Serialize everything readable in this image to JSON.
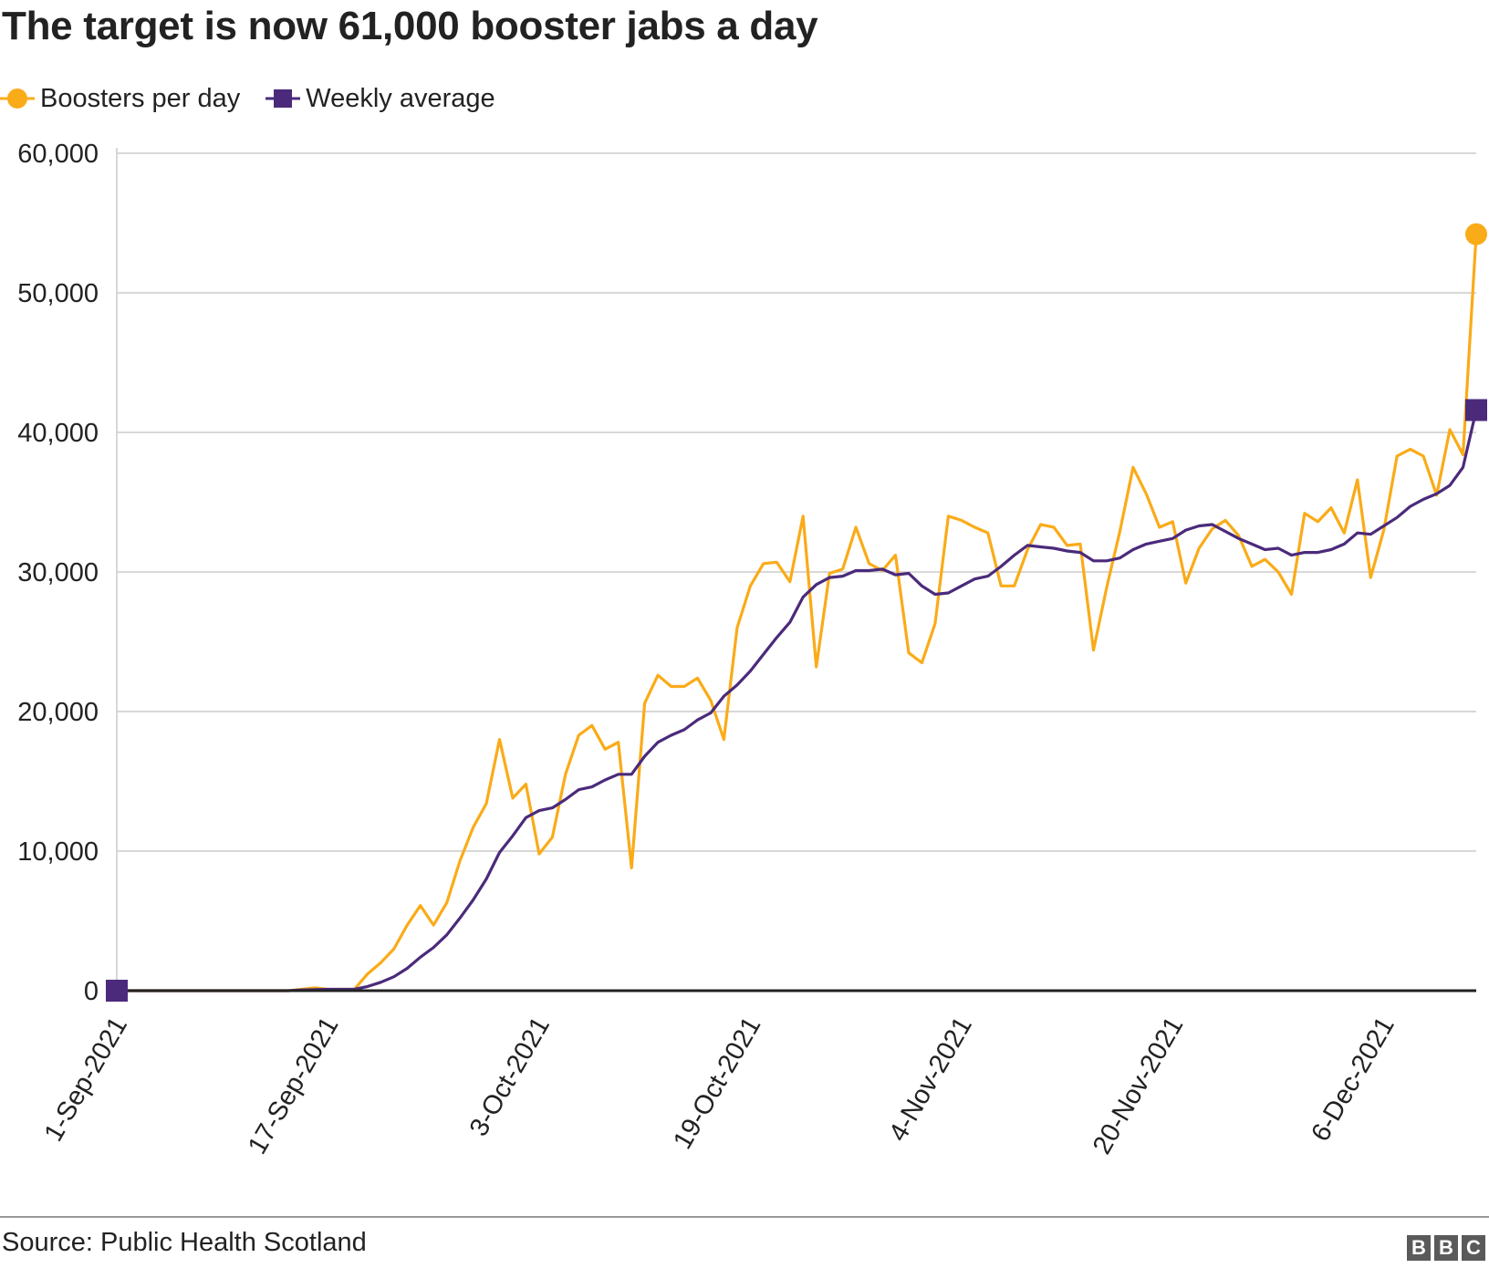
{
  "header": {
    "title": "The target is now 61,000 booster jabs a day"
  },
  "footer": {
    "source": "Source: Public Health Scotland",
    "logo_letters": [
      "B",
      "B",
      "C"
    ]
  },
  "colors": {
    "boosters": "#FAAB18",
    "weekly": "#4B2A7B",
    "grid": "#CCCCCC",
    "axis": "#222222",
    "text": "#222222"
  },
  "chart_data": {
    "type": "line",
    "title": "The target is now 61,000 booster jabs a day",
    "xlabel": "",
    "ylabel": "",
    "ylim": [
      0,
      60000
    ],
    "yticks": [
      0,
      10000,
      20000,
      30000,
      40000,
      50000,
      60000
    ],
    "ytick_labels": [
      "0",
      "10,000",
      "20,000",
      "30,000",
      "40,000",
      "50,000",
      "60,000"
    ],
    "x_start": "2021-09-01",
    "x_end": "2021-12-13",
    "xtick_dates": [
      "2021-09-01",
      "2021-09-17",
      "2021-10-03",
      "2021-10-19",
      "2021-11-04",
      "2021-11-20",
      "2021-12-06"
    ],
    "xtick_labels": [
      "1-Sep-2021",
      "17-Sep-2021",
      "3-Oct-2021",
      "19-Oct-2021",
      "4-Nov-2021",
      "20-Nov-2021",
      "6-Dec-2021"
    ],
    "grid": true,
    "legend_position": "top-left",
    "series": [
      {
        "name": "Boosters per day",
        "color": "#FAAB18",
        "marker": "circle",
        "points": [
          [
            "2021-09-01",
            0
          ],
          [
            "2021-09-02",
            0
          ],
          [
            "2021-09-03",
            0
          ],
          [
            "2021-09-04",
            0
          ],
          [
            "2021-09-05",
            0
          ],
          [
            "2021-09-06",
            0
          ],
          [
            "2021-09-07",
            0
          ],
          [
            "2021-09-08",
            0
          ],
          [
            "2021-09-09",
            0
          ],
          [
            "2021-09-10",
            0
          ],
          [
            "2021-09-11",
            0
          ],
          [
            "2021-09-12",
            0
          ],
          [
            "2021-09-13",
            0
          ],
          [
            "2021-09-14",
            0
          ],
          [
            "2021-09-15",
            100
          ],
          [
            "2021-09-16",
            200
          ],
          [
            "2021-09-17",
            100
          ],
          [
            "2021-09-18",
            100
          ],
          [
            "2021-09-19",
            100
          ],
          [
            "2021-09-20",
            1200
          ],
          [
            "2021-09-21",
            2000
          ],
          [
            "2021-09-22",
            3000
          ],
          [
            "2021-09-23",
            4700
          ],
          [
            "2021-09-24",
            6100
          ],
          [
            "2021-09-25",
            4700
          ],
          [
            "2021-09-26",
            6300
          ],
          [
            "2021-09-27",
            9300
          ],
          [
            "2021-09-28",
            11700
          ],
          [
            "2021-09-29",
            13400
          ],
          [
            "2021-09-30",
            18000
          ],
          [
            "2021-10-01",
            13800
          ],
          [
            "2021-10-02",
            14800
          ],
          [
            "2021-10-03",
            9800
          ],
          [
            "2021-10-04",
            11000
          ],
          [
            "2021-10-05",
            15500
          ],
          [
            "2021-10-06",
            18300
          ],
          [
            "2021-10-07",
            19000
          ],
          [
            "2021-10-08",
            17300
          ],
          [
            "2021-10-09",
            17800
          ],
          [
            "2021-10-10",
            8800
          ],
          [
            "2021-10-11",
            20600
          ],
          [
            "2021-10-12",
            22600
          ],
          [
            "2021-10-13",
            21800
          ],
          [
            "2021-10-14",
            21800
          ],
          [
            "2021-10-15",
            22400
          ],
          [
            "2021-10-16",
            20800
          ],
          [
            "2021-10-17",
            18000
          ],
          [
            "2021-10-18",
            26000
          ],
          [
            "2021-10-19",
            29000
          ],
          [
            "2021-10-20",
            30600
          ],
          [
            "2021-10-21",
            30700
          ],
          [
            "2021-10-22",
            29300
          ],
          [
            "2021-10-23",
            34000
          ],
          [
            "2021-10-24",
            23200
          ],
          [
            "2021-10-25",
            29900
          ],
          [
            "2021-10-26",
            30200
          ],
          [
            "2021-10-27",
            33200
          ],
          [
            "2021-10-28",
            30600
          ],
          [
            "2021-10-29",
            30100
          ],
          [
            "2021-10-30",
            31200
          ],
          [
            "2021-10-31",
            24200
          ],
          [
            "2021-11-01",
            23500
          ],
          [
            "2021-11-02",
            26300
          ],
          [
            "2021-11-03",
            34000
          ],
          [
            "2021-11-04",
            33700
          ],
          [
            "2021-11-05",
            33200
          ],
          [
            "2021-11-06",
            32800
          ],
          [
            "2021-11-07",
            29000
          ],
          [
            "2021-11-08",
            29000
          ],
          [
            "2021-11-09",
            31600
          ],
          [
            "2021-11-10",
            33400
          ],
          [
            "2021-11-11",
            33200
          ],
          [
            "2021-11-12",
            31900
          ],
          [
            "2021-11-13",
            32000
          ],
          [
            "2021-11-14",
            24400
          ],
          [
            "2021-11-15",
            28900
          ],
          [
            "2021-11-16",
            32900
          ],
          [
            "2021-11-17",
            37500
          ],
          [
            "2021-11-18",
            35600
          ],
          [
            "2021-11-19",
            33200
          ],
          [
            "2021-11-20",
            33600
          ],
          [
            "2021-11-21",
            29200
          ],
          [
            "2021-11-22",
            31700
          ],
          [
            "2021-11-23",
            33100
          ],
          [
            "2021-11-24",
            33700
          ],
          [
            "2021-11-25",
            32600
          ],
          [
            "2021-11-26",
            30400
          ],
          [
            "2021-11-27",
            30900
          ],
          [
            "2021-11-28",
            30000
          ],
          [
            "2021-11-29",
            28400
          ],
          [
            "2021-11-30",
            34200
          ],
          [
            "2021-12-01",
            33600
          ],
          [
            "2021-12-02",
            34600
          ],
          [
            "2021-12-03",
            32800
          ],
          [
            "2021-12-04",
            36600
          ],
          [
            "2021-12-05",
            29600
          ],
          [
            "2021-12-06",
            33000
          ],
          [
            "2021-12-07",
            38300
          ],
          [
            "2021-12-08",
            38800
          ],
          [
            "2021-12-09",
            38300
          ],
          [
            "2021-12-10",
            35500
          ],
          [
            "2021-12-11",
            40200
          ],
          [
            "2021-12-12",
            38400
          ],
          [
            "2021-12-13",
            54200
          ]
        ]
      },
      {
        "name": "Weekly average",
        "color": "#4B2A7B",
        "marker": "square",
        "points": [
          [
            "2021-09-01",
            0
          ],
          [
            "2021-09-02",
            0
          ],
          [
            "2021-09-03",
            0
          ],
          [
            "2021-09-04",
            0
          ],
          [
            "2021-09-05",
            0
          ],
          [
            "2021-09-06",
            0
          ],
          [
            "2021-09-07",
            0
          ],
          [
            "2021-09-08",
            0
          ],
          [
            "2021-09-09",
            0
          ],
          [
            "2021-09-10",
            0
          ],
          [
            "2021-09-11",
            0
          ],
          [
            "2021-09-12",
            0
          ],
          [
            "2021-09-13",
            0
          ],
          [
            "2021-09-14",
            0
          ],
          [
            "2021-09-15",
            50
          ],
          [
            "2021-09-16",
            80
          ],
          [
            "2021-09-17",
            100
          ],
          [
            "2021-09-18",
            100
          ],
          [
            "2021-09-19",
            100
          ],
          [
            "2021-09-20",
            300
          ],
          [
            "2021-09-21",
            600
          ],
          [
            "2021-09-22",
            1000
          ],
          [
            "2021-09-23",
            1600
          ],
          [
            "2021-09-24",
            2400
          ],
          [
            "2021-09-25",
            3100
          ],
          [
            "2021-09-26",
            4000
          ],
          [
            "2021-09-27",
            5200
          ],
          [
            "2021-09-28",
            6500
          ],
          [
            "2021-09-29",
            8000
          ],
          [
            "2021-09-30",
            9900
          ],
          [
            "2021-10-01",
            11100
          ],
          [
            "2021-10-02",
            12400
          ],
          [
            "2021-10-03",
            12900
          ],
          [
            "2021-10-04",
            13100
          ],
          [
            "2021-10-05",
            13700
          ],
          [
            "2021-10-06",
            14400
          ],
          [
            "2021-10-07",
            14600
          ],
          [
            "2021-10-08",
            15100
          ],
          [
            "2021-10-09",
            15500
          ],
          [
            "2021-10-10",
            15500
          ],
          [
            "2021-10-11",
            16800
          ],
          [
            "2021-10-12",
            17800
          ],
          [
            "2021-10-13",
            18300
          ],
          [
            "2021-10-14",
            18700
          ],
          [
            "2021-10-15",
            19400
          ],
          [
            "2021-10-16",
            19900
          ],
          [
            "2021-10-17",
            21100
          ],
          [
            "2021-10-18",
            21900
          ],
          [
            "2021-10-19",
            22900
          ],
          [
            "2021-10-20",
            24100
          ],
          [
            "2021-10-21",
            25300
          ],
          [
            "2021-10-22",
            26400
          ],
          [
            "2021-10-23",
            28200
          ],
          [
            "2021-10-24",
            29100
          ],
          [
            "2021-10-25",
            29600
          ],
          [
            "2021-10-26",
            29700
          ],
          [
            "2021-10-27",
            30100
          ],
          [
            "2021-10-28",
            30100
          ],
          [
            "2021-10-29",
            30200
          ],
          [
            "2021-10-30",
            29800
          ],
          [
            "2021-10-31",
            29900
          ],
          [
            "2021-11-01",
            29000
          ],
          [
            "2021-11-02",
            28400
          ],
          [
            "2021-11-03",
            28500
          ],
          [
            "2021-11-04",
            29000
          ],
          [
            "2021-11-05",
            29500
          ],
          [
            "2021-11-06",
            29700
          ],
          [
            "2021-11-07",
            30400
          ],
          [
            "2021-11-08",
            31200
          ],
          [
            "2021-11-09",
            31900
          ],
          [
            "2021-11-10",
            31800
          ],
          [
            "2021-11-11",
            31700
          ],
          [
            "2021-11-12",
            31500
          ],
          [
            "2021-11-13",
            31400
          ],
          [
            "2021-11-14",
            30800
          ],
          [
            "2021-11-15",
            30800
          ],
          [
            "2021-11-16",
            31000
          ],
          [
            "2021-11-17",
            31600
          ],
          [
            "2021-11-18",
            32000
          ],
          [
            "2021-11-19",
            32200
          ],
          [
            "2021-11-20",
            32400
          ],
          [
            "2021-11-21",
            33000
          ],
          [
            "2021-11-22",
            33300
          ],
          [
            "2021-11-23",
            33400
          ],
          [
            "2021-11-24",
            32900
          ],
          [
            "2021-11-25",
            32400
          ],
          [
            "2021-11-26",
            32000
          ],
          [
            "2021-11-27",
            31600
          ],
          [
            "2021-11-28",
            31700
          ],
          [
            "2021-11-29",
            31200
          ],
          [
            "2021-11-30",
            31400
          ],
          [
            "2021-12-01",
            31400
          ],
          [
            "2021-12-02",
            31600
          ],
          [
            "2021-12-03",
            32000
          ],
          [
            "2021-12-04",
            32800
          ],
          [
            "2021-12-05",
            32700
          ],
          [
            "2021-12-06",
            33300
          ],
          [
            "2021-12-07",
            33900
          ],
          [
            "2021-12-08",
            34700
          ],
          [
            "2021-12-09",
            35200
          ],
          [
            "2021-12-10",
            35600
          ],
          [
            "2021-12-11",
            36200
          ],
          [
            "2021-12-12",
            37500
          ],
          [
            "2021-12-13",
            41600
          ]
        ]
      }
    ]
  }
}
